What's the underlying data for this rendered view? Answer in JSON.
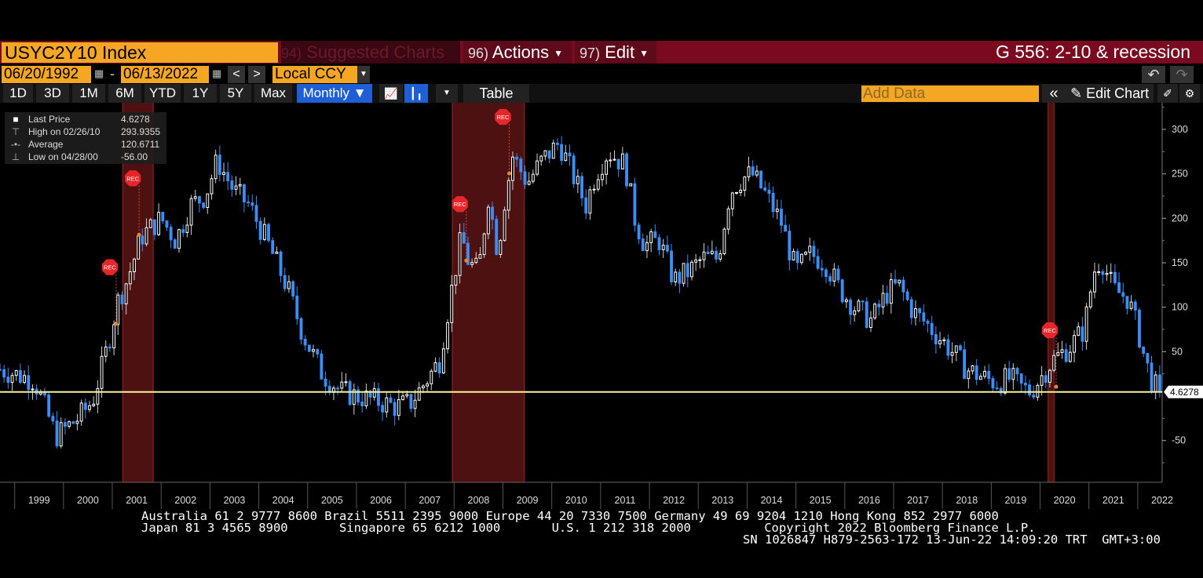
{
  "header": {
    "ticker": "USYC2Y10 Index",
    "suggested": {
      "num": "94)",
      "label": "Suggested Charts"
    },
    "actions": {
      "num": "96)",
      "label": "Actions"
    },
    "edit": {
      "num": "97)",
      "label": "Edit"
    },
    "chart_title": "G 556: 2-10 & recession"
  },
  "range": {
    "start_date": "06/20/1992",
    "end_date": "06/13/2022",
    "dash": "-",
    "prev": "<",
    "next": ">",
    "currency": "Local CCY"
  },
  "toolbar": {
    "periods": [
      "1D",
      "3D",
      "1M",
      "6M",
      "YTD",
      "1Y",
      "5Y",
      "Max"
    ],
    "frequency": "Monthly",
    "table_label": "Table",
    "add_data_placeholder": "Add Data",
    "edit_chart_label": "Edit Chart",
    "collapse": "«"
  },
  "legend": {
    "last_label": "Last Price",
    "last_value": "4.6278",
    "high_label": "High on 02/26/10",
    "high_value": "293.9355",
    "avg_label": "Average",
    "avg_value": "120.6711",
    "low_label": "Low on 04/28/00",
    "low_value": "-56.00"
  },
  "chart_data": {
    "type": "candlestick",
    "frequency": "monthly",
    "series_name": "USYC2Y10 Index",
    "last_value": 4.6278,
    "last_label": "4.6278",
    "y_ticks": [
      -50,
      50,
      100,
      150,
      200,
      250,
      300
    ],
    "ylim": [
      -97,
      330
    ],
    "x_ticks": [
      "1999",
      "2000",
      "2001",
      "2002",
      "2003",
      "2004",
      "2005",
      "2006",
      "2007",
      "2008",
      "2009",
      "2010",
      "2011",
      "2012",
      "2013",
      "2014",
      "2015",
      "2016",
      "2017",
      "2018",
      "2019",
      "2020",
      "2021",
      "2022"
    ],
    "xlim": [
      1998.7,
      2022.5
    ],
    "recession_bands": [
      [
        2001.2,
        2001.85
      ],
      [
        2007.95,
        2009.45
      ],
      [
        2020.15,
        2020.3
      ]
    ],
    "recession_markers": [
      {
        "x": 2000.95,
        "y": 145,
        "label": "REC"
      },
      {
        "x": 2001.42,
        "y": 245,
        "label": "REC"
      },
      {
        "x": 2008.12,
        "y": 216,
        "label": "REC"
      },
      {
        "x": 2009.0,
        "y": 314,
        "label": "REC"
      },
      {
        "x": 2020.2,
        "y": 74,
        "label": "REC"
      }
    ],
    "anchors": [
      [
        1998.7,
        30
      ],
      [
        1999.4,
        18
      ],
      [
        1999.6,
        -10
      ],
      [
        1999.85,
        -45
      ],
      [
        2000.3,
        -25
      ],
      [
        2000.6,
        -5
      ],
      [
        2000.9,
        55
      ],
      [
        2001.1,
        105
      ],
      [
        2001.3,
        130
      ],
      [
        2001.6,
        180
      ],
      [
        2001.8,
        190
      ],
      [
        2002.0,
        200
      ],
      [
        2002.3,
        175
      ],
      [
        2002.6,
        215
      ],
      [
        2002.9,
        225
      ],
      [
        2003.15,
        265
      ],
      [
        2003.5,
        230
      ],
      [
        2003.8,
        215
      ],
      [
        2004.2,
        170
      ],
      [
        2004.6,
        120
      ],
      [
        2004.9,
        70
      ],
      [
        2005.3,
        25
      ],
      [
        2005.7,
        5
      ],
      [
        2006.0,
        0
      ],
      [
        2006.4,
        -5
      ],
      [
        2006.8,
        -12
      ],
      [
        2007.1,
        -8
      ],
      [
        2007.4,
        15
      ],
      [
        2007.7,
        40
      ],
      [
        2007.9,
        105
      ],
      [
        2008.15,
        180
      ],
      [
        2008.3,
        150
      ],
      [
        2008.5,
        140
      ],
      [
        2008.7,
        225
      ],
      [
        2008.9,
        160
      ],
      [
        2009.0,
        210
      ],
      [
        2009.2,
        270
      ],
      [
        2009.5,
        240
      ],
      [
        2009.8,
        265
      ],
      [
        2010.15,
        285
      ],
      [
        2010.5,
        240
      ],
      [
        2010.7,
        215
      ],
      [
        2010.9,
        250
      ],
      [
        2011.15,
        275
      ],
      [
        2011.5,
        260
      ],
      [
        2011.7,
        200
      ],
      [
        2011.9,
        170
      ],
      [
        2012.2,
        175
      ],
      [
        2012.5,
        130
      ],
      [
        2012.8,
        140
      ],
      [
        2013.1,
        155
      ],
      [
        2013.4,
        155
      ],
      [
        2013.65,
        230
      ],
      [
        2013.9,
        245
      ],
      [
        2014.1,
        250
      ],
      [
        2014.4,
        225
      ],
      [
        2014.7,
        195
      ],
      [
        2015.0,
        140
      ],
      [
        2015.3,
        160
      ],
      [
        2015.6,
        150
      ],
      [
        2015.9,
        120
      ],
      [
        2016.2,
        100
      ],
      [
        2016.55,
        85
      ],
      [
        2016.85,
        115
      ],
      [
        2017.1,
        125
      ],
      [
        2017.4,
        95
      ],
      [
        2017.7,
        80
      ],
      [
        2017.95,
        65
      ],
      [
        2018.2,
        50
      ],
      [
        2018.5,
        30
      ],
      [
        2018.8,
        22
      ],
      [
        2019.1,
        15
      ],
      [
        2019.4,
        20
      ],
      [
        2019.6,
        10
      ],
      [
        2019.8,
        5
      ],
      [
        2020.0,
        20
      ],
      [
        2020.25,
        40
      ],
      [
        2020.6,
        55
      ],
      [
        2020.9,
        75
      ],
      [
        2021.1,
        140
      ],
      [
        2021.25,
        155
      ],
      [
        2021.5,
        120
      ],
      [
        2021.8,
        110
      ],
      [
        2022.0,
        75
      ],
      [
        2022.15,
        40
      ],
      [
        2022.3,
        15
      ],
      [
        2022.45,
        4.63
      ]
    ],
    "seed": 7
  },
  "footer": {
    "line1": "Australia 61 2 9777 8600 Brazil 5511 2395 9000 Europe 44 20 7330 7500 Germany 49 69 9204 1210 Hong Kong 852 2977 6000",
    "line2": "Japan 81 3 4565 8900       Singapore 65 6212 1000       U.S. 1 212 318 2000          Copyright 2022 Bloomberg Finance L.P.",
    "line3": "SN 1026847 H879-2563-172 13-Jun-22 14:09:20 TRT  GMT+3:00"
  },
  "colors": {
    "up": "#ffffff",
    "down": "#3a8ef6",
    "last_line": "#f7f39a",
    "recession": "#5a1414",
    "accent": "#f5a623"
  }
}
